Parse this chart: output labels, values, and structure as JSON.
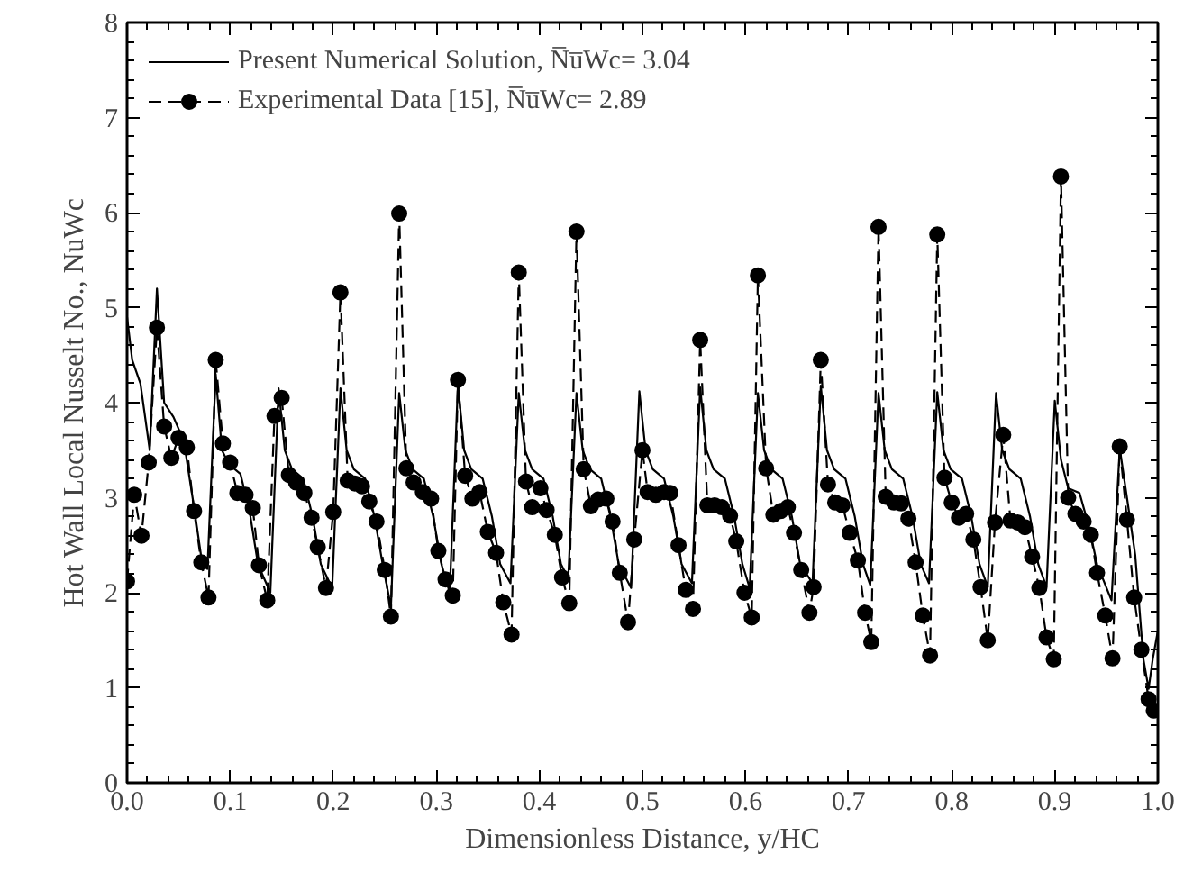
{
  "chart_data": {
    "type": "line",
    "xlabel": "Dimensionless Distance, y/HC",
    "ylabel": "Hot Wall Local Nusselt No., NuWc",
    "xlim": [
      0,
      1
    ],
    "ylim": [
      0,
      8
    ],
    "xticks": [
      {
        "value": 0,
        "label": "0.0"
      },
      {
        "value": 0.1,
        "label": "0.1"
      },
      {
        "value": 0.2,
        "label": "0.2"
      },
      {
        "value": 0.3,
        "label": "0.3"
      },
      {
        "value": 0.4,
        "label": "0.4"
      },
      {
        "value": 0.5,
        "label": "0.5"
      },
      {
        "value": 0.6,
        "label": "0.6"
      },
      {
        "value": 0.7,
        "label": "0.7"
      },
      {
        "value": 0.8,
        "label": "0.8"
      },
      {
        "value": 0.9,
        "label": "0.9"
      },
      {
        "value": 1,
        "label": "1.0"
      }
    ],
    "yticks": [
      0,
      1,
      2,
      3,
      4,
      5,
      6,
      7,
      8
    ],
    "grid": false,
    "legend": "top left",
    "series": [
      {
        "name": "Present Numerical Solution, N̅u̅Wc= 3.04",
        "color": "#000000",
        "marker": "none",
        "line_style": "solid",
        "x": [
          0,
          0.005,
          0.013,
          0.022,
          0.029,
          0.036,
          0.045,
          0.055,
          0.065,
          0.073,
          0.078,
          0.086,
          0.092,
          0.099,
          0.11,
          0.119,
          0.127,
          0.139,
          0.147,
          0.153,
          0.16,
          0.171,
          0.18,
          0.188,
          0.199,
          0.207,
          0.213,
          0.22,
          0.231,
          0.24,
          0.248,
          0.256,
          0.264,
          0.27,
          0.277,
          0.288,
          0.297,
          0.305,
          0.313,
          0.321,
          0.327,
          0.334,
          0.345,
          0.354,
          0.362,
          0.372,
          0.38,
          0.386,
          0.393,
          0.404,
          0.413,
          0.421,
          0.428,
          0.436,
          0.442,
          0.449,
          0.46,
          0.469,
          0.477,
          0.489,
          0.497,
          0.503,
          0.51,
          0.521,
          0.53,
          0.538,
          0.548,
          0.556,
          0.562,
          0.569,
          0.58,
          0.589,
          0.597,
          0.604,
          0.612,
          0.618,
          0.625,
          0.636,
          0.645,
          0.653,
          0.665,
          0.673,
          0.679,
          0.686,
          0.697,
          0.706,
          0.714,
          0.721,
          0.729,
          0.735,
          0.742,
          0.753,
          0.762,
          0.77,
          0.778,
          0.786,
          0.792,
          0.799,
          0.81,
          0.819,
          0.827,
          0.835,
          0.843,
          0.849,
          0.856,
          0.867,
          0.876,
          0.884,
          0.892,
          0.9,
          0.906,
          0.913,
          0.924,
          0.933,
          0.941,
          0.955,
          0.963,
          0.97,
          0.978,
          0.986,
          0.991,
          0.995,
          1.0
        ],
        "values": [
          4.9,
          4.45,
          4.2,
          3.5,
          5.2,
          4.0,
          3.85,
          3.6,
          2.9,
          2.3,
          2.25,
          4.3,
          3.5,
          3.35,
          3.25,
          2.85,
          2.3,
          2.0,
          4.15,
          3.5,
          3.3,
          3.2,
          2.8,
          2.3,
          2.05,
          4.15,
          3.5,
          3.3,
          3.2,
          2.8,
          2.3,
          1.85,
          4.1,
          3.5,
          3.3,
          3.2,
          2.8,
          2.3,
          2.0,
          4.2,
          3.5,
          3.3,
          3.2,
          2.8,
          2.3,
          2.1,
          4.1,
          3.5,
          3.3,
          3.2,
          2.8,
          2.3,
          2.15,
          4.1,
          3.5,
          3.3,
          3.2,
          2.8,
          2.3,
          2.05,
          4.12,
          3.5,
          3.3,
          3.2,
          2.8,
          2.3,
          2.1,
          4.16,
          3.5,
          3.3,
          3.2,
          2.8,
          2.3,
          2.05,
          4.1,
          3.5,
          3.3,
          3.2,
          2.8,
          2.3,
          2.1,
          4.18,
          3.5,
          3.3,
          3.2,
          2.8,
          2.3,
          2.08,
          4.1,
          3.5,
          3.3,
          3.2,
          2.8,
          2.3,
          2.1,
          4.11,
          3.5,
          3.3,
          3.2,
          2.8,
          2.3,
          2.06,
          4.1,
          3.5,
          3.3,
          3.2,
          2.8,
          2.3,
          2.06,
          4.02,
          3.4,
          3.1,
          3.05,
          2.7,
          2.3,
          1.92,
          3.52,
          3.0,
          2.4,
          1.3,
          0.99,
          1.3,
          1.6
        ]
      },
      {
        "name": "Experimental Data [15], N̅u̅Wc= 2.89",
        "color": "#000000",
        "marker": "circle",
        "line_style": "dashed",
        "x": [
          0.0,
          0.007,
          0.014,
          0.021,
          0.029,
          0.036,
          0.043,
          0.05,
          0.058,
          0.065,
          0.072,
          0.079,
          0.086,
          0.093,
          0.1,
          0.107,
          0.115,
          0.122,
          0.128,
          0.136,
          0.143,
          0.15,
          0.157,
          0.164,
          0.172,
          0.179,
          0.185,
          0.193,
          0.2,
          0.207,
          0.214,
          0.221,
          0.228,
          0.235,
          0.242,
          0.25,
          0.256,
          0.264,
          0.271,
          0.278,
          0.287,
          0.295,
          0.302,
          0.309,
          0.316,
          0.321,
          0.328,
          0.335,
          0.342,
          0.35,
          0.358,
          0.365,
          0.373,
          0.38,
          0.387,
          0.393,
          0.401,
          0.407,
          0.415,
          0.422,
          0.429,
          0.436,
          0.443,
          0.45,
          0.457,
          0.465,
          0.471,
          0.478,
          0.486,
          0.492,
          0.5,
          0.505,
          0.513,
          0.521,
          0.527,
          0.535,
          0.542,
          0.549,
          0.556,
          0.563,
          0.57,
          0.577,
          0.585,
          0.591,
          0.599,
          0.606,
          0.612,
          0.62,
          0.627,
          0.634,
          0.641,
          0.647,
          0.654,
          0.662,
          0.666,
          0.673,
          0.68,
          0.687,
          0.694,
          0.701,
          0.709,
          0.716,
          0.722,
          0.729,
          0.736,
          0.744,
          0.751,
          0.758,
          0.765,
          0.772,
          0.779,
          0.786,
          0.793,
          0.8,
          0.807,
          0.814,
          0.821,
          0.828,
          0.835,
          0.842,
          0.85,
          0.857,
          0.864,
          0.871,
          0.878,
          0.885,
          0.892,
          0.899,
          0.906,
          0.913,
          0.92,
          0.928,
          0.935,
          0.941,
          0.949,
          0.956,
          0.963,
          0.97,
          0.977,
          0.984,
          0.991,
          0.996
        ],
        "values": [
          2.12,
          3.03,
          2.6,
          3.37,
          4.79,
          3.75,
          3.42,
          3.63,
          3.53,
          2.86,
          2.32,
          1.95,
          4.45,
          3.57,
          3.37,
          3.05,
          3.03,
          2.89,
          2.29,
          1.92,
          3.86,
          4.05,
          3.24,
          3.16,
          3.05,
          2.79,
          2.48,
          2.05,
          2.85,
          5.16,
          3.18,
          3.15,
          3.12,
          2.96,
          2.75,
          2.24,
          1.75,
          5.99,
          3.31,
          3.16,
          3.06,
          2.99,
          2.44,
          2.14,
          1.97,
          4.24,
          3.23,
          2.99,
          3.06,
          2.64,
          2.42,
          1.9,
          1.56,
          5.37,
          3.17,
          2.9,
          3.1,
          2.87,
          2.61,
          2.16,
          1.89,
          5.8,
          3.3,
          2.91,
          2.98,
          2.99,
          2.75,
          2.21,
          1.69,
          2.56,
          3.5,
          3.06,
          3.03,
          3.06,
          3.05,
          2.5,
          2.03,
          1.83,
          4.66,
          2.92,
          2.92,
          2.9,
          2.81,
          2.54,
          2.0,
          1.74,
          5.34,
          3.31,
          2.82,
          2.86,
          2.9,
          2.63,
          2.24,
          1.79,
          2.06,
          4.45,
          3.14,
          2.95,
          2.92,
          2.63,
          2.34,
          1.79,
          1.48,
          5.85,
          3.01,
          2.95,
          2.94,
          2.78,
          2.32,
          1.76,
          1.34,
          5.77,
          3.21,
          2.95,
          2.79,
          2.83,
          2.56,
          2.06,
          1.5,
          2.74,
          3.66,
          2.76,
          2.74,
          2.69,
          2.38,
          2.05,
          1.53,
          1.3,
          6.38,
          3.0,
          2.83,
          2.75,
          2.61,
          2.21,
          1.76,
          1.31,
          3.54,
          2.77,
          1.95,
          1.4,
          0.88,
          0.76
        ]
      }
    ]
  }
}
